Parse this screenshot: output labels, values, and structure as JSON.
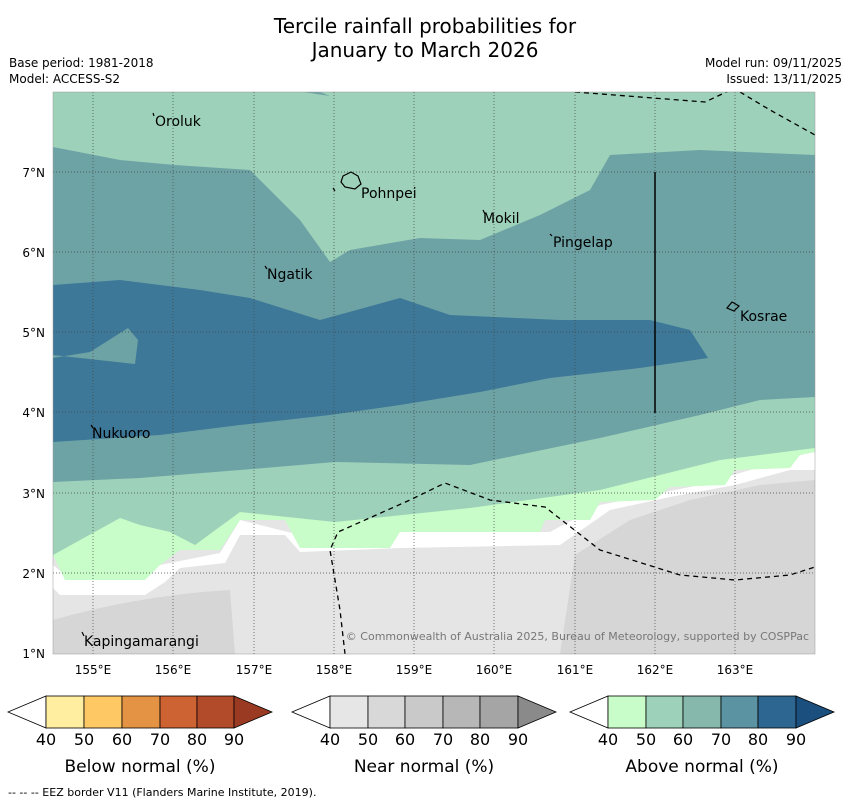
{
  "title": {
    "line1": "Tercile rainfall probabilities for",
    "line2": "January to March 2026"
  },
  "meta": {
    "base_period": "Base period: 1981-2018",
    "model": "Model: ACCESS-S2",
    "model_run": "Model run: 09/11/2025",
    "issued": "Issued: 13/11/2025"
  },
  "map": {
    "lat_labels": [
      "7°N",
      "6°N",
      "5°N",
      "4°N",
      "3°N",
      "2°N",
      "1°N"
    ],
    "lon_labels": [
      "155°E",
      "156°E",
      "157°E",
      "158°E",
      "159°E",
      "160°E",
      "161°E",
      "162°E",
      "163°E"
    ],
    "places": [
      "Oroluk",
      "Pohnpei",
      "Mokil",
      "Pingelap",
      "Ngatik",
      "Kosrae",
      "Nukuoro",
      "Kapingamarangi"
    ],
    "copyright": "© Commonwealth of Australia 2025, Bureau of Meteorology, supported by COSPPac"
  },
  "legends": [
    {
      "label": "Below normal (%)",
      "ticks": [
        "40",
        "50",
        "60",
        "70",
        "80",
        "90"
      ],
      "colors": [
        "#ffeda0",
        "#fec965",
        "#e39343",
        "#cd6233",
        "#b24b2a",
        "#9a3a22"
      ]
    },
    {
      "label": "Near normal (%)",
      "ticks": [
        "40",
        "50",
        "60",
        "70",
        "80",
        "90"
      ],
      "colors": [
        "#e6e6e6",
        "#d8d8d8",
        "#c9c9c9",
        "#b7b7b7",
        "#a5a5a5",
        "#8a8a8a"
      ]
    },
    {
      "label": "Above normal (%)",
      "ticks": [
        "40",
        "50",
        "60",
        "70",
        "80",
        "90"
      ],
      "colors": [
        "#c8fcc8",
        "#9dd1b9",
        "#86b8ab",
        "#5b93a3",
        "#2e6692",
        "#1a4f7e"
      ]
    }
  ],
  "footer": "--  --  -- EEZ border V11 (Flanders Marine Institute, 2019)."
}
